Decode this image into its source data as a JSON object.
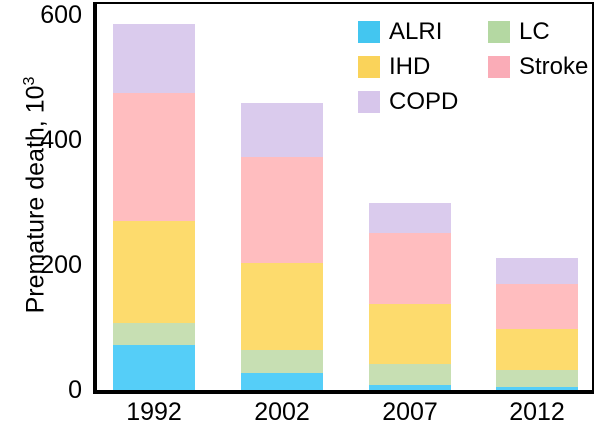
{
  "chart_data": {
    "type": "bar",
    "stacked": true,
    "title": "",
    "categories": [
      "1992",
      "2002",
      "2007",
      "2012"
    ],
    "series": [
      {
        "name": "ALRI",
        "color": "#55CEF8",
        "legend_color": "#43C6F0",
        "values": [
          72,
          27,
          8,
          5
        ]
      },
      {
        "name": "LC",
        "color": "#C7DFB3",
        "legend_color": "#B4D8A2",
        "values": [
          35,
          37,
          34,
          27
        ]
      },
      {
        "name": "IHD",
        "color": "#FDDB6D",
        "legend_color": "#FAD35A",
        "values": [
          163,
          139,
          96,
          66
        ]
      },
      {
        "name": "Stroke",
        "color": "#FFBDBF",
        "legend_color": "#FAACB7",
        "values": [
          205,
          170,
          114,
          72
        ]
      },
      {
        "name": "COPD",
        "color": "#DACBED",
        "legend_color": "#D7C6EB",
        "values": [
          110,
          87,
          48,
          41
        ]
      }
    ],
    "ylabel": "Premature death, 10³",
    "ylabel_base": "Premature death, 10",
    "ylabel_exponent": "3",
    "ylim": [
      0,
      600
    ],
    "yticks": [
      0,
      200,
      400,
      600
    ],
    "xlabel": "",
    "grid": false,
    "legend_position": "top-inside",
    "legend_columns": [
      [
        "ALRI",
        "IHD",
        "COPD"
      ],
      [
        "LC",
        "Stroke"
      ]
    ],
    "axis_color": "#000000",
    "background_color": "#FFFFFF"
  }
}
